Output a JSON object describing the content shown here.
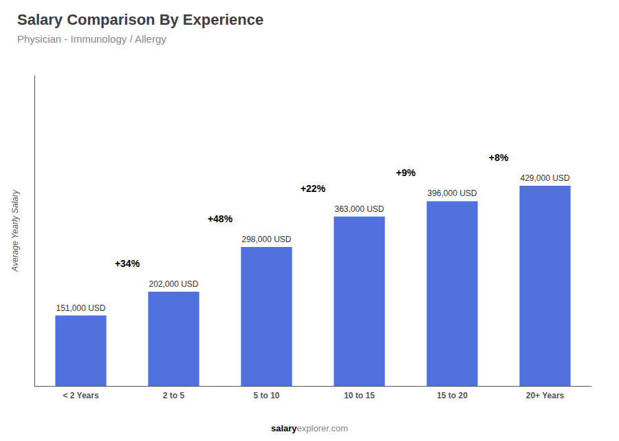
{
  "chart_data": {
    "type": "bar",
    "title": "Salary Comparison By Experience",
    "subtitle": "Physician - Immunology / Allergy",
    "categories": [
      "< 2 Years",
      "2 to 5",
      "5 to 10",
      "10 to 15",
      "15 to 20",
      "20+ Years"
    ],
    "values": [
      151000,
      202000,
      298000,
      363000,
      396000,
      429000
    ],
    "value_labels": [
      "151,000 USD",
      "202,000 USD",
      "298,000 USD",
      "363,000 USD",
      "396,000 USD",
      "429,000 USD"
    ],
    "data_labels": true,
    "ylabel": "Average Yearly Salary",
    "ylim": [
      0,
      664950
    ],
    "annotations": [
      "+34%",
      "+48%",
      "+22%",
      "+9%",
      "+8%"
    ],
    "footer": [
      "salary",
      "explorer.com"
    ],
    "tick_labels": "x",
    "grid": false
  }
}
